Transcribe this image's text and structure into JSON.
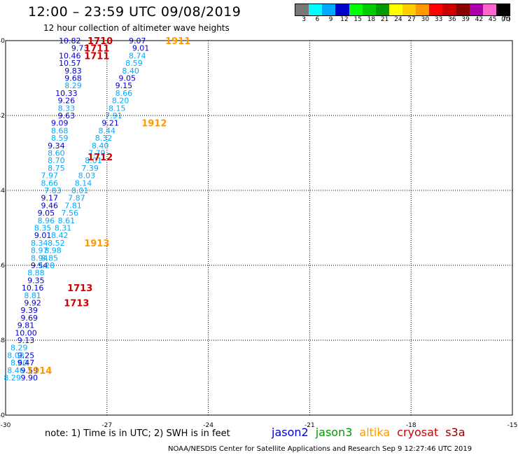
{
  "title": "12:00 – 23:59 UTC 09/08/2019",
  "subtitle": "12 hour collection of altimeter wave heights",
  "legend": {
    "labels": [
      "3",
      "6",
      "9",
      "12",
      "15",
      "18",
      "21",
      "24",
      "27",
      "30",
      "33",
      "36",
      "39",
      "42",
      "45",
      "70",
      "(ft)"
    ],
    "colors": [
      "#777777",
      "#00ffff",
      "#00aaff",
      "#0000cc",
      "#00ff00",
      "#00cc00",
      "#009900",
      "#ffff00",
      "#ffcc00",
      "#ff9900",
      "#ff0000",
      "#cc0000",
      "#880000",
      "#aa00aa",
      "#ff66cc",
      "#000000"
    ]
  },
  "note": "note: 1) Time is in UTC; 2) SWH is in feet",
  "satellites": [
    {
      "name": "jason2",
      "color": "#0000cc"
    },
    {
      "name": "jason3",
      "color": "#009900"
    },
    {
      "name": "altika",
      "color": "#ff9900"
    },
    {
      "name": "cryosat",
      "color": "#cc0000"
    },
    {
      "name": "s3a",
      "color": "#880000"
    }
  ],
  "credit": "NOAA/NESDIS Center for Satellite Applications and Research   Sep  9 12:27:46 UTC 2019",
  "chart_data": {
    "type": "scatter",
    "xlim": [
      -30,
      -15
    ],
    "ylim": [
      -50,
      -40
    ],
    "xticks": [
      "-30",
      "-27",
      "-24",
      "-21",
      "-18",
      "-15"
    ],
    "yticks": [
      "-40",
      "-42",
      "-44",
      "-46",
      "-48",
      "-50"
    ],
    "grid": true,
    "color_classes": {
      "dark": "#0000cc",
      "light": "#00aaff"
    },
    "wave_labels": [
      {
        "v": "10.82",
        "x": -28.1,
        "y": -40.0,
        "c": "dark"
      },
      {
        "v": "9.73",
        "x": -27.8,
        "y": -40.2,
        "c": "dark"
      },
      {
        "v": "10.46",
        "x": -28.1,
        "y": -40.4,
        "c": "dark"
      },
      {
        "v": "10.57",
        "x": -28.1,
        "y": -40.6,
        "c": "dark"
      },
      {
        "v": "9.83",
        "x": -28.0,
        "y": -40.8,
        "c": "dark"
      },
      {
        "v": "9.68",
        "x": -28.0,
        "y": -41.0,
        "c": "dark"
      },
      {
        "v": "8.29",
        "x": -28.0,
        "y": -41.2,
        "c": "light"
      },
      {
        "v": "10.33",
        "x": -28.2,
        "y": -41.4,
        "c": "dark"
      },
      {
        "v": "9.26",
        "x": -28.2,
        "y": -41.6,
        "c": "dark"
      },
      {
        "v": "8.33",
        "x": -28.2,
        "y": -41.8,
        "c": "light"
      },
      {
        "v": "9.63",
        "x": -28.2,
        "y": -42.0,
        "c": "dark"
      },
      {
        "v": "9.09",
        "x": -28.4,
        "y": -42.2,
        "c": "dark"
      },
      {
        "v": "8.68",
        "x": -28.4,
        "y": -42.4,
        "c": "light"
      },
      {
        "v": "8.59",
        "x": -28.4,
        "y": -42.6,
        "c": "light"
      },
      {
        "v": "9.34",
        "x": -28.5,
        "y": -42.8,
        "c": "dark"
      },
      {
        "v": "8.60",
        "x": -28.5,
        "y": -43.0,
        "c": "light"
      },
      {
        "v": "8.70",
        "x": -28.5,
        "y": -43.2,
        "c": "light"
      },
      {
        "v": "8.75",
        "x": -28.5,
        "y": -43.4,
        "c": "light"
      },
      {
        "v": "7.97",
        "x": -28.7,
        "y": -43.6,
        "c": "light"
      },
      {
        "v": "8.66",
        "x": -28.7,
        "y": -43.8,
        "c": "light"
      },
      {
        "v": "7.83",
        "x": -28.6,
        "y": -44.0,
        "c": "light"
      },
      {
        "v": "9.17",
        "x": -28.7,
        "y": -44.2,
        "c": "dark"
      },
      {
        "v": "9.46",
        "x": -28.7,
        "y": -44.4,
        "c": "dark"
      },
      {
        "v": "9.05",
        "x": -28.8,
        "y": -44.6,
        "c": "dark"
      },
      {
        "v": "8.96",
        "x": -28.8,
        "y": -44.8,
        "c": "light"
      },
      {
        "v": "8.35",
        "x": -28.9,
        "y": -45.0,
        "c": "light"
      },
      {
        "v": "9.01",
        "x": -28.9,
        "y": -45.2,
        "c": "dark"
      },
      {
        "v": "8.34",
        "x": -29.0,
        "y": -45.4,
        "c": "light"
      },
      {
        "v": "8.97",
        "x": -29.0,
        "y": -45.6,
        "c": "light"
      },
      {
        "v": "8.94",
        "x": -29.0,
        "y": -45.8,
        "c": "light"
      },
      {
        "v": "9.54",
        "x": -29.0,
        "y": -46.0,
        "c": "dark"
      },
      {
        "v": "8.88",
        "x": -29.1,
        "y": -46.2,
        "c": "light"
      },
      {
        "v": "9.35",
        "x": -29.1,
        "y": -46.4,
        "c": "dark"
      },
      {
        "v": "10.16",
        "x": -29.2,
        "y": -46.6,
        "c": "dark"
      },
      {
        "v": "8.81",
        "x": -29.2,
        "y": -46.8,
        "c": "light"
      },
      {
        "v": "9.92",
        "x": -29.2,
        "y": -47.0,
        "c": "dark"
      },
      {
        "v": "9.39",
        "x": -29.3,
        "y": -47.2,
        "c": "dark"
      },
      {
        "v": "9.69",
        "x": -29.3,
        "y": -47.4,
        "c": "dark"
      },
      {
        "v": "9.81",
        "x": -29.4,
        "y": -47.6,
        "c": "dark"
      },
      {
        "v": "10.00",
        "x": -29.4,
        "y": -47.8,
        "c": "dark"
      },
      {
        "v": "9.13",
        "x": -29.4,
        "y": -48.0,
        "c": "dark"
      },
      {
        "v": "8.29",
        "x": -29.6,
        "y": -48.2,
        "c": "light"
      },
      {
        "v": "9.25",
        "x": -29.4,
        "y": -48.4,
        "c": "dark"
      },
      {
        "v": "8.03",
        "x": -29.7,
        "y": -48.4,
        "c": "light"
      },
      {
        "v": "8.60",
        "x": -29.6,
        "y": -48.6,
        "c": "light"
      },
      {
        "v": "9.47",
        "x": -29.4,
        "y": -48.6,
        "c": "dark"
      },
      {
        "v": "9.59",
        "x": -29.3,
        "y": -48.8,
        "c": "dark"
      },
      {
        "v": "8.46",
        "x": -29.7,
        "y": -48.8,
        "c": "light"
      },
      {
        "v": "9.90",
        "x": -29.3,
        "y": -49.0,
        "c": "dark"
      },
      {
        "v": "8.29",
        "x": -29.8,
        "y": -49.0,
        "c": "light"
      },
      {
        "v": "9.07",
        "x": -26.1,
        "y": -40.0,
        "c": "dark"
      },
      {
        "v": "9.01",
        "x": -26.0,
        "y": -40.2,
        "c": "dark"
      },
      {
        "v": "8.74",
        "x": -26.1,
        "y": -40.4,
        "c": "light"
      },
      {
        "v": "8.59",
        "x": -26.2,
        "y": -40.6,
        "c": "light"
      },
      {
        "v": "8.40",
        "x": -26.3,
        "y": -40.8,
        "c": "light"
      },
      {
        "v": "9.05",
        "x": -26.4,
        "y": -41.0,
        "c": "dark"
      },
      {
        "v": "9.15",
        "x": -26.5,
        "y": -41.2,
        "c": "dark"
      },
      {
        "v": "8.66",
        "x": -26.5,
        "y": -41.4,
        "c": "light"
      },
      {
        "v": "8.20",
        "x": -26.6,
        "y": -41.6,
        "c": "light"
      },
      {
        "v": "8.15",
        "x": -26.7,
        "y": -41.8,
        "c": "light"
      },
      {
        "v": "7.91",
        "x": -26.8,
        "y": -42.0,
        "c": "light"
      },
      {
        "v": "9.21",
        "x": -26.9,
        "y": -42.2,
        "c": "dark"
      },
      {
        "v": "8.44",
        "x": -27.0,
        "y": -42.4,
        "c": "light"
      },
      {
        "v": "8.32",
        "x": -27.1,
        "y": -42.6,
        "c": "light"
      },
      {
        "v": "8.40",
        "x": -27.2,
        "y": -42.8,
        "c": "light"
      },
      {
        "v": "7.79",
        "x": -27.3,
        "y": -43.0,
        "c": "light"
      },
      {
        "v": "8.01",
        "x": -27.4,
        "y": -43.2,
        "c": "light"
      },
      {
        "v": "7.39",
        "x": -27.5,
        "y": -43.4,
        "c": "light"
      },
      {
        "v": "8.03",
        "x": -27.6,
        "y": -43.6,
        "c": "light"
      },
      {
        "v": "8.14",
        "x": -27.7,
        "y": -43.8,
        "c": "light"
      },
      {
        "v": "8.01",
        "x": -27.8,
        "y": -44.0,
        "c": "light"
      },
      {
        "v": "7.87",
        "x": -27.9,
        "y": -44.2,
        "c": "light"
      },
      {
        "v": "7.81",
        "x": -28.0,
        "y": -44.4,
        "c": "light"
      },
      {
        "v": "7.56",
        "x": -28.1,
        "y": -44.6,
        "c": "light"
      },
      {
        "v": "8.61",
        "x": -28.2,
        "y": -44.8,
        "c": "light"
      },
      {
        "v": "8.31",
        "x": -28.3,
        "y": -45.0,
        "c": "light"
      },
      {
        "v": "8.42",
        "x": -28.4,
        "y": -45.2,
        "c": "light"
      },
      {
        "v": "8.52",
        "x": -28.5,
        "y": -45.4,
        "c": "light"
      },
      {
        "v": "8.98",
        "x": -28.6,
        "y": -45.6,
        "c": "light"
      },
      {
        "v": "8.85",
        "x": -28.7,
        "y": -45.8,
        "c": "light"
      },
      {
        "v": "9.28",
        "x": -28.8,
        "y": -46.0,
        "c": "light"
      }
    ],
    "pass_labels": [
      {
        "t": "1710",
        "x": -27.2,
        "y": -40.0,
        "c": "#cc0000"
      },
      {
        "t": "1711",
        "x": -27.3,
        "y": -40.2,
        "c": "#cc0000"
      },
      {
        "t": "1711",
        "x": -27.3,
        "y": -40.4,
        "c": "#cc0000"
      },
      {
        "t": "1911",
        "x": -24.9,
        "y": -40.0,
        "c": "#ff9900"
      },
      {
        "t": "1912",
        "x": -25.6,
        "y": -42.2,
        "c": "#ff9900"
      },
      {
        "t": "1712",
        "x": -27.2,
        "y": -43.1,
        "c": "#cc0000"
      },
      {
        "t": "1913",
        "x": -27.3,
        "y": -45.4,
        "c": "#ff9900"
      },
      {
        "t": "1713",
        "x": -27.8,
        "y": -46.6,
        "c": "#cc0000"
      },
      {
        "t": "1713",
        "x": -27.9,
        "y": -47.0,
        "c": "#cc0000"
      },
      {
        "t": "1914",
        "x": -29.0,
        "y": -48.8,
        "c": "#ff9900"
      }
    ]
  }
}
